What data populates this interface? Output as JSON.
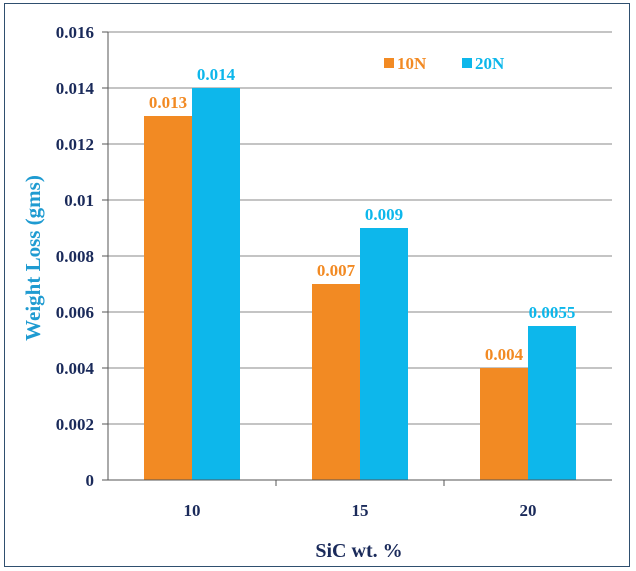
{
  "chart_data": {
    "type": "bar",
    "xlabel": "SiC wt. %",
    "ylabel": "Weight Loss (gms)",
    "categories": [
      "10",
      "15",
      "20"
    ],
    "ylim": [
      0,
      0.016
    ],
    "yticks": [
      "0",
      "0.002",
      "0.004",
      "0.006",
      "0.008",
      "0.01",
      "0.012",
      "0.014",
      "0.016"
    ],
    "grid": "horizontal",
    "legend_position": "top-right",
    "series": [
      {
        "name": "10N",
        "color": "#f28a23",
        "values": [
          0.013,
          0.007,
          0.004
        ],
        "labels": [
          "0.013",
          "0.007",
          "0.004"
        ]
      },
      {
        "name": "20N",
        "color": "#0db7eb",
        "values": [
          0.014,
          0.009,
          0.0055
        ],
        "labels": [
          "0.014",
          "0.009",
          "0.0055"
        ]
      }
    ]
  }
}
